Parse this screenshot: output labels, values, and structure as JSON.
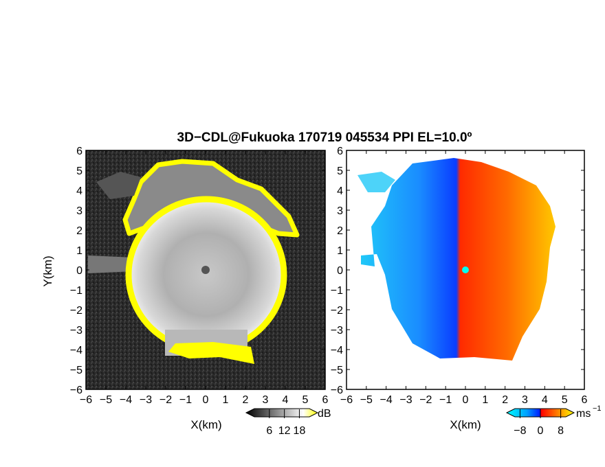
{
  "chart_data": [
    {
      "type": "heatmap",
      "panel": "reflectivity",
      "title": "3D−CDL@Fukuoka 170719 045534 PPI EL=10.0º",
      "xlabel": "X(km)",
      "ylabel": "Y(km)",
      "xlim": [
        -6,
        6
      ],
      "ylim": [
        -6,
        6
      ],
      "xticks": [
        "−6",
        "−5",
        "−4",
        "−3",
        "−2",
        "−1",
        "0",
        "1",
        "2",
        "3",
        "4",
        "5",
        "6"
      ],
      "yticks": [
        "6",
        "5",
        "4",
        "3",
        "2",
        "1",
        "0",
        "−1",
        "−2",
        "−3",
        "−4",
        "−5",
        "−6"
      ],
      "colorbar": {
        "unit": "dB",
        "ticks": [
          "6",
          "12",
          "18"
        ],
        "range": [
          0,
          22
        ],
        "colors": [
          "#000000",
          "#ffffff",
          "#ffff00"
        ]
      },
      "description_values": {
        "echo_radius_km": 4.0,
        "radar_origin_km": [
          0,
          0
        ]
      }
    },
    {
      "type": "heatmap",
      "panel": "doppler_velocity",
      "xlabel": "X(km)",
      "xlim": [
        -6,
        6
      ],
      "ylim": [
        -6,
        6
      ],
      "xticks": [
        "−6",
        "−5",
        "−4",
        "−3",
        "−2",
        "−1",
        "0",
        "1",
        "2",
        "3",
        "4",
        "5",
        "6"
      ],
      "yticks": [
        "6",
        "5",
        "4",
        "3",
        "2",
        "1",
        "0",
        "−1",
        "−2",
        "−3",
        "−4",
        "−5",
        "−6"
      ],
      "colorbar": {
        "unit": "ms",
        "unit_exponent": "−1",
        "ticks": [
          "−8",
          "0",
          "8"
        ],
        "range": [
          -10,
          10
        ],
        "colors": [
          "#00c8ff",
          "#1040ff",
          "#ff1000",
          "#ffe000"
        ]
      },
      "description_values": {
        "negative_side": "west",
        "positive_side": "east"
      }
    }
  ]
}
